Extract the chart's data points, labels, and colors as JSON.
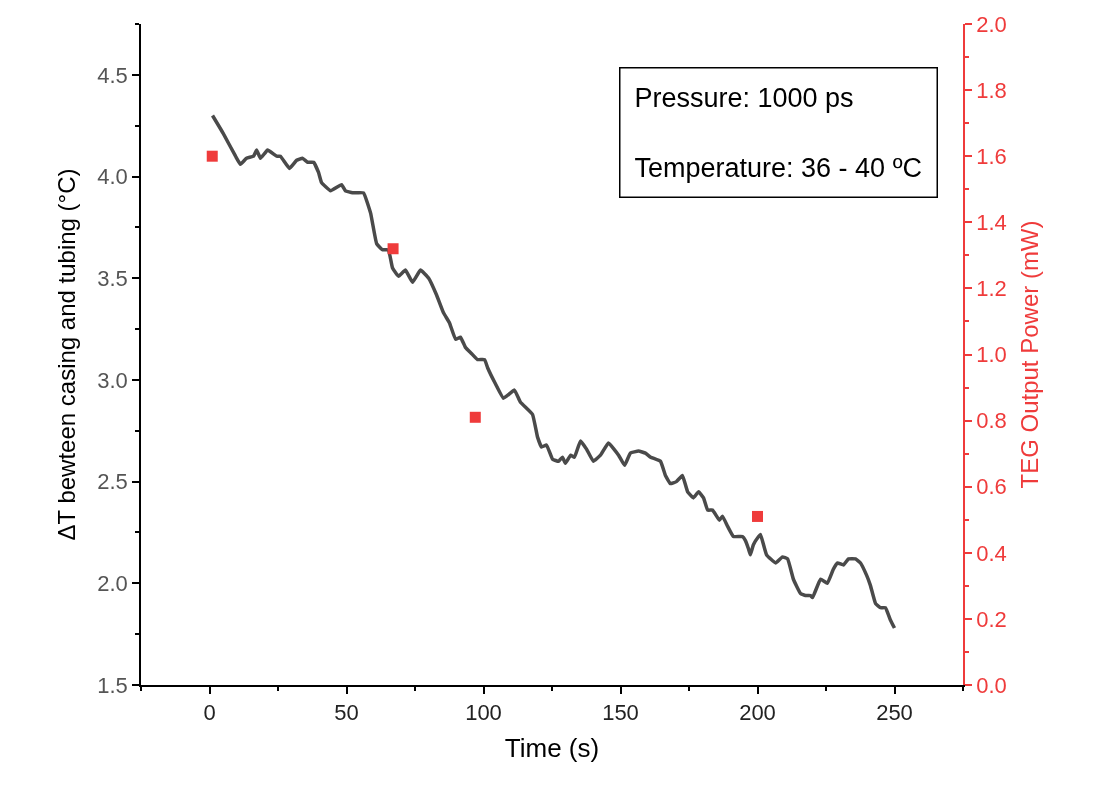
{
  "chart_data": {
    "type": "line",
    "xlabel": "Time (s)",
    "ylabel": "ΔT bewteen casing and tubing (°C)",
    "y2label": "TEG Output Power (mW)",
    "annotations": [
      "Pressure: 1000 ps",
      "Temperature: 36 - 40 ºC"
    ],
    "xlim": [
      -25,
      275
    ],
    "xticks": [
      0,
      50,
      100,
      150,
      200,
      250
    ],
    "ylim": [
      1.5,
      4.75
    ],
    "yticks": [
      1.5,
      {
        "value": 2,
        "label": "2.0"
      },
      2.5,
      {
        "value": 3,
        "label": "3.0"
      },
      3.5,
      {
        "value": 4,
        "label": "4.0"
      },
      4.5
    ],
    "y2lim": [
      0,
      2.0
    ],
    "y2ticks": [
      {
        "value": 0,
        "label": "0.0"
      },
      0.2,
      0.4,
      0.6,
      0.8,
      {
        "value": 1,
        "label": "1.0"
      },
      1.2,
      1.4,
      1.6,
      1.8,
      {
        "value": 2,
        "label": "2.0"
      }
    ],
    "series": [
      {
        "color": "#4a4a4a",
        "marker": "none",
        "line_style": "solid",
        "x": [
          1.1,
          5.1,
          9.5,
          11.3,
          13.5,
          16.1,
          17.2,
          18.6,
          21.2,
          24.5,
          25.9,
          29.2,
          31.8,
          33.9,
          35.8,
          38,
          39.8,
          40.9,
          44.2,
          48.2,
          49.6,
          52.2,
          56.2,
          58.8,
          61,
          63.1,
          65.3,
          66.8,
          69,
          71.5,
          74.1,
          77,
          80,
          82.8,
          85.4,
          87.6,
          89.8,
          91.6,
          93.4,
          95.6,
          97.8,
          100.4,
          101.5,
          104.4,
          107.3,
          111.3,
          113.5,
          117.9,
          119.7,
          121.2,
          123,
          125.2,
          127.4,
          128.8,
          129.9,
          131.8,
          133.2,
          135.4,
          137.6,
          140.1,
          142.7,
          145.6,
          149.3,
          151.5,
          153.6,
          156.6,
          159.1,
          161,
          164.6,
          166.4,
          168.2,
          170.4,
          172.6,
          174.5,
          176.6,
          178.5,
          180.3,
          181.8,
          183.6,
          186.1,
          187.2,
          189.1,
          191.2,
          194.5,
          195.6,
          196.7,
          197.4,
          198.5,
          200.4,
          201.1,
          203.3,
          206.6,
          209.1,
          211,
          213.1,
          215.7,
          217.5,
          219.3,
          220.1,
          223,
          225.5,
          227.7,
          229.2,
          231.4,
          233.2,
          235.8,
          237.6,
          239.8,
          241.2,
          243.1,
          244.9,
          246.7,
          248.5,
          250
        ],
        "values": [
          4.3,
          4.21,
          4.1,
          4.06,
          4.09,
          4.1,
          4.13,
          4.09,
          4.13,
          4.1,
          4.1,
          4.04,
          4.08,
          4.09,
          4.07,
          4.07,
          4.02,
          3.97,
          3.93,
          3.96,
          3.93,
          3.92,
          3.92,
          3.82,
          3.67,
          3.64,
          3.64,
          3.55,
          3.51,
          3.54,
          3.48,
          3.54,
          3.5,
          3.42,
          3.33,
          3.28,
          3.2,
          3.21,
          3.16,
          3.13,
          3.1,
          3.1,
          3.06,
          2.98,
          2.91,
          2.95,
          2.89,
          2.83,
          2.72,
          2.67,
          2.68,
          2.61,
          2.6,
          2.62,
          2.59,
          2.63,
          2.62,
          2.7,
          2.66,
          2.6,
          2.63,
          2.69,
          2.63,
          2.58,
          2.64,
          2.65,
          2.64,
          2.62,
          2.6,
          2.53,
          2.49,
          2.5,
          2.53,
          2.45,
          2.42,
          2.45,
          2.42,
          2.36,
          2.36,
          2.31,
          2.33,
          2.28,
          2.23,
          2.23,
          2.21,
          2.17,
          2.14,
          2.19,
          2.23,
          2.24,
          2.14,
          2.1,
          2.13,
          2.12,
          2.02,
          1.95,
          1.94,
          1.94,
          1.93,
          2.02,
          2.0,
          2.07,
          2.1,
          2.09,
          2.12,
          2.12,
          2.1,
          2.04,
          1.99,
          1.9,
          1.88,
          1.88,
          1.82,
          1.78
        ]
      },
      {
        "type": "scatter",
        "color": "#ef3b3b",
        "marker": "square",
        "axis": "y2",
        "x": [
          1,
          67,
          97,
          200
        ],
        "values": [
          1.6,
          1.32,
          0.81,
          0.51
        ]
      }
    ]
  }
}
